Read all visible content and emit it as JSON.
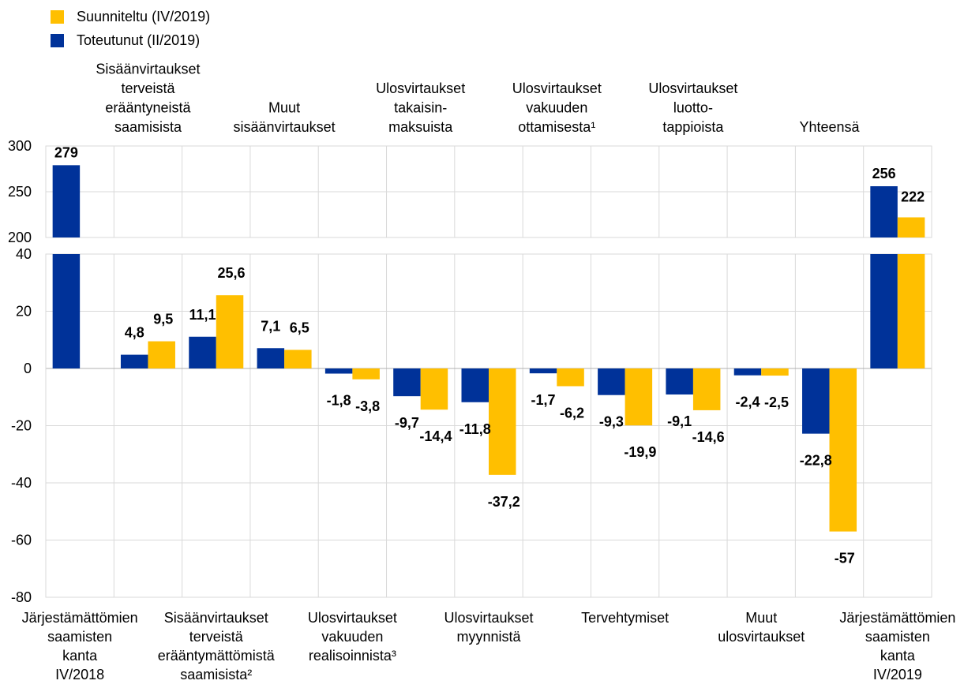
{
  "chart_data": {
    "type": "bar",
    "colors": {
      "planned": "#FFBF00",
      "actual": "#003299",
      "grid": "#d9d9d9",
      "axis": "#b0b0b0"
    },
    "legend": [
      {
        "key": "planned",
        "label": "Suunniteltu (IV/2019)"
      },
      {
        "key": "actual",
        "label": "Toteutunut (II/2019)"
      }
    ],
    "categories_top": [
      "",
      "Sisäänvirtaukset\nterveistä\nerääntyneistä\nsaamisista",
      "",
      "Muut\nsisäänvirtaukset",
      "",
      "Ulosvirtaukset\ntakaisin-\nmaksuista",
      "",
      "Ulosvirtaukset\nvakuuden\nottamisesta¹",
      "",
      "Ulosvirtaukset\nluotto-\ntappioista",
      "",
      "Yhteensä",
      ""
    ],
    "categories_bottom": [
      "Järjestämättömien\nsaamisten\nkanta\nIV/2018",
      "",
      "Sisäänvirtaukset\nterveistä\nerääntymättömistä\nsaamisista²",
      "",
      "Ulosvirtaukset\nvakuuden\nrealisoinnista³",
      "",
      "Ulosvirtaukset\nmyynnistä",
      "",
      "Tervehtymiset",
      "",
      "Muut\nulosvirtaukset",
      "",
      "Järjestämättömien\nsaamisten\nkanta\nIV/2019"
    ],
    "series": [
      {
        "key": "actual",
        "name": "Toteutunut (II/2019)",
        "values": [
          279,
          4.8,
          11.1,
          7.1,
          -1.8,
          -9.7,
          -11.8,
          -1.7,
          -9.3,
          -9.1,
          -2.4,
          -22.8,
          256
        ]
      },
      {
        "key": "planned",
        "name": "Suunniteltu (IV/2019)",
        "values": [
          null,
          9.5,
          25.6,
          6.5,
          -3.8,
          -14.4,
          -37.2,
          -6.2,
          -19.9,
          -14.6,
          -2.5,
          -57,
          222
        ]
      }
    ],
    "labels": {
      "actual": [
        "279",
        "4,8",
        "11,1",
        "7,1",
        "-1,8",
        "-9,7",
        "-11,8",
        "-1,7",
        "-9,3",
        "-9,1",
        "-2,4",
        "-22,8",
        "256"
      ],
      "planned": [
        "",
        "9,5",
        "25,6",
        "6,5",
        "-3,8",
        "-14,4",
        "-37,2",
        "-6,2",
        "-19,9",
        "-14,6",
        "-2,5",
        "-57",
        "222"
      ]
    },
    "upper_panel": {
      "ylim": [
        200,
        300
      ],
      "ticks": [
        200,
        250,
        300
      ],
      "tick_labels": [
        "200",
        "250",
        "300"
      ]
    },
    "lower_panel": {
      "ylim": [
        -80,
        40
      ],
      "ticks": [
        -80,
        -60,
        -40,
        -20,
        0,
        20,
        40
      ],
      "tick_labels": [
        "-80",
        "-60",
        "-40",
        "-20",
        "0",
        "20",
        "40"
      ]
    },
    "grid": true,
    "legend_position": "top-left"
  }
}
